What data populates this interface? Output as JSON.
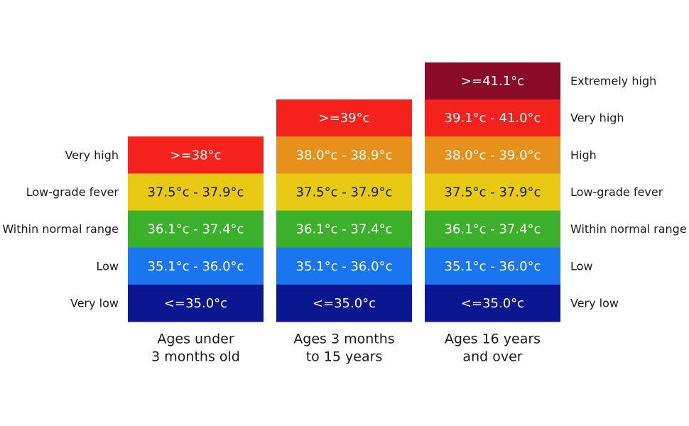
{
  "columns": [
    {
      "title": [
        "Ages under",
        "3 months old"
      ],
      "cells": [
        {
          "text": ">=38°c",
          "color": "#f4211d",
          "text_color": "#ffffff"
        },
        {
          "text": "37.5°c - 37.9°c",
          "color": "#e8c914",
          "text_color": "#1a1a1a"
        },
        {
          "text": "36.1°c - 37.4°c",
          "color": "#3bb02a",
          "text_color": "#ffffff"
        },
        {
          "text": "35.1°c - 36.0°c",
          "color": "#1b74f0",
          "text_color": "#ffffff"
        },
        {
          "text": "<=35.0°c",
          "color": "#0b1791",
          "text_color": "#ffffff"
        }
      ]
    },
    {
      "title": [
        "Ages 3 months",
        "to 15 years"
      ],
      "cells": [
        {
          "text": ">=39°c",
          "color": "#f4211d",
          "text_color": "#ffffff"
        },
        {
          "text": "38.0°c - 38.9°c",
          "color": "#e7901b",
          "text_color": "#ffffff"
        },
        {
          "text": "37.5°c - 37.9°c",
          "color": "#e8c914",
          "text_color": "#1a1a1a"
        },
        {
          "text": "36.1°c - 37.4°c",
          "color": "#3bb02a",
          "text_color": "#ffffff"
        },
        {
          "text": "35.1°c - 36.0°c",
          "color": "#1b74f0",
          "text_color": "#ffffff"
        },
        {
          "text": "<=35.0°c",
          "color": "#0b1791",
          "text_color": "#ffffff"
        }
      ]
    },
    {
      "title": [
        "Ages 16 years",
        "and over"
      ],
      "cells": [
        {
          "text": ">=41.1°c",
          "color": "#8a0b26",
          "text_color": "#ffffff"
        },
        {
          "text": "39.1°c - 41.0°c",
          "color": "#f4211d",
          "text_color": "#ffffff"
        },
        {
          "text": "38.0°c - 39.0°c",
          "color": "#e7901b",
          "text_color": "#ffffff"
        },
        {
          "text": "37.5°c - 37.9°c",
          "color": "#e8c914",
          "text_color": "#1a1a1a"
        },
        {
          "text": "36.1°c - 37.4°c",
          "color": "#3bb02a",
          "text_color": "#ffffff"
        },
        {
          "text": "35.1°c - 36.0°c",
          "color": "#1b74f0",
          "text_color": "#ffffff"
        },
        {
          "text": "<=35.0°c",
          "color": "#0b1791",
          "text_color": "#ffffff"
        }
      ]
    }
  ],
  "left_labels": [
    "Very high",
    "Low-grade fever",
    "Within normal range",
    "Low",
    "Very low"
  ],
  "right_labels": [
    "Extremely high",
    "Very high",
    "High",
    "Low-grade fever",
    "Within normal range",
    "Low",
    "Very low"
  ]
}
